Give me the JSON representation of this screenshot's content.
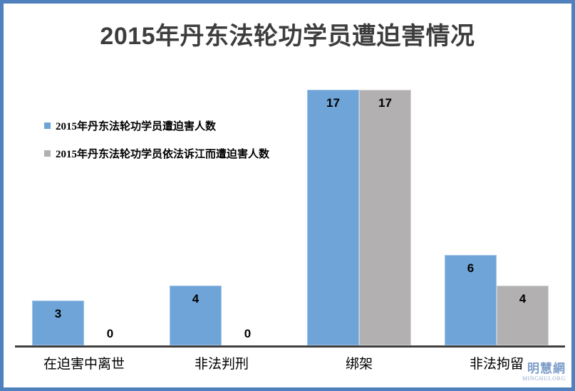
{
  "frame": {
    "border_color": "#4f81bd"
  },
  "title": {
    "text": "2015年丹东法轮功学员遭迫害情况",
    "color": "#3d3d3d"
  },
  "axis": {
    "color": "#3f3f3f"
  },
  "watermark": {
    "cjk": "明慧網",
    "latin": "MINGHUI.ORG",
    "color": "#7f9eca"
  },
  "chart_data": {
    "type": "bar",
    "title": "2015年丹东法轮功学员遭迫害情况",
    "categories": [
      "在迫害中离世",
      "非法判刑",
      "绑架",
      "非法拘留"
    ],
    "series": [
      {
        "name": "2015年丹东法轮功学员遭迫害人数",
        "color": "#6fa4d8",
        "border_color": "#9dc3e6",
        "values": [
          3,
          4,
          17,
          6
        ]
      },
      {
        "name": "2015年丹东法轮功学员依法诉江而遭迫害人数",
        "color": "#b2b0b0",
        "border_color": "#d6d4d4",
        "values": [
          0,
          0,
          17,
          4
        ]
      }
    ],
    "ylim": [
      0,
      17
    ],
    "xlabel": "",
    "ylabel": "",
    "grid": false,
    "data_labels": true,
    "legend_position": "upper-left"
  }
}
